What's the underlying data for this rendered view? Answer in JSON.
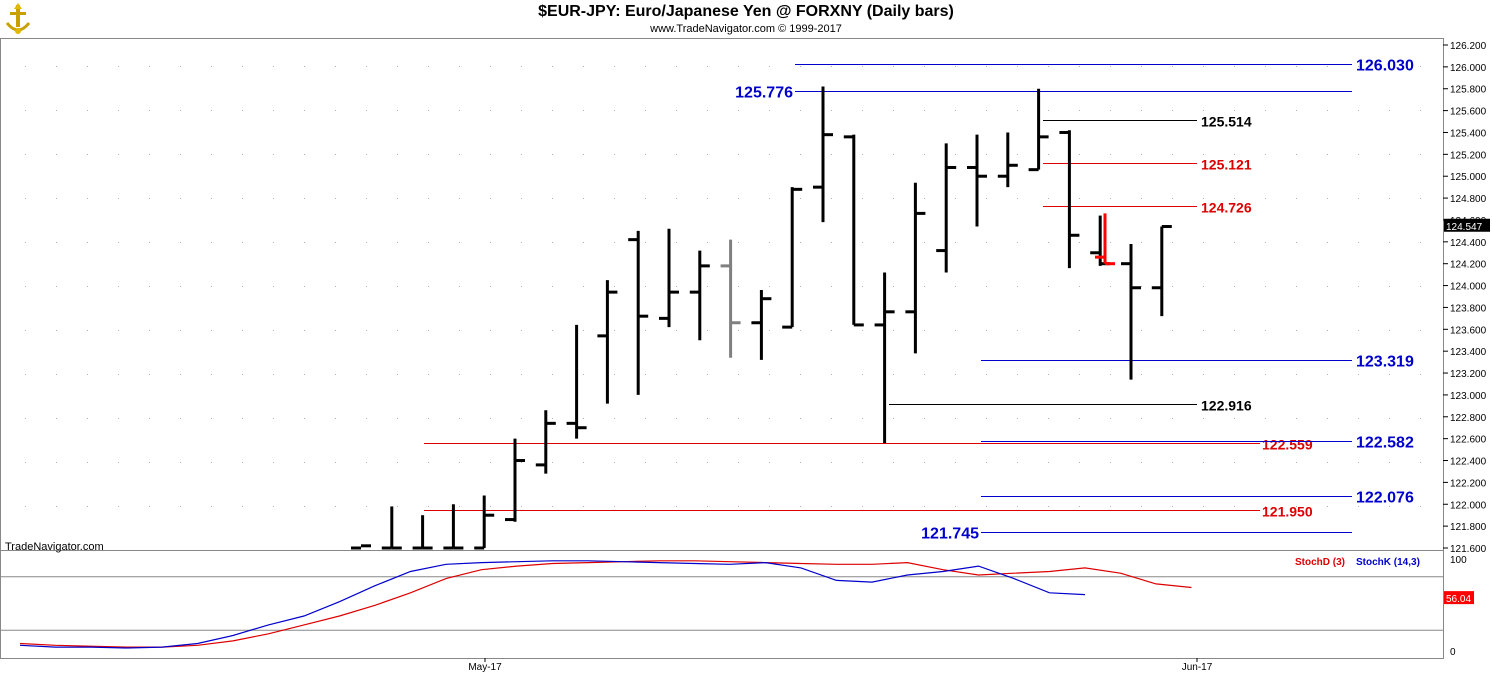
{
  "header": {
    "title": "$EUR-JPY:  Euro/Japanese Yen @ FORXNY  (Daily bars)",
    "subtitle": "www.TradeNavigator.com © 1999-2017",
    "watermark": "TradeNavigator.com"
  },
  "colors": {
    "price_bar": "#000000",
    "price_bar_gray": "#808080",
    "price_bar_red": "#ff0000",
    "blue_level": "#0000cc",
    "red_level": "#dd0000",
    "black_level": "#000000",
    "grid_dot": "#b0b0b0",
    "stoch_d": "#dd0000",
    "stoch_k": "#0000cc"
  },
  "chart_data": [
    {
      "type": "ohlc",
      "title": "$EUR-JPY:  Euro/Japanese Yen @ FORXNY  (Daily bars)",
      "ylim": [
        121.6,
        126.2
      ],
      "y_ticks": [
        "126.200",
        "126.000",
        "125.800",
        "125.600",
        "125.400",
        "125.200",
        "125.000",
        "124.800",
        "124.600",
        "124.400",
        "124.200",
        "124.000",
        "123.800",
        "123.600",
        "123.400",
        "123.200",
        "123.000",
        "122.800",
        "122.600",
        "122.400",
        "122.200",
        "122.000",
        "121.800",
        "121.600"
      ],
      "x_ticks": [
        "May-17",
        "Jun-17"
      ],
      "last_price": "124.547",
      "bars": [
        {
          "o": 121.6,
          "h": 121.6,
          "l": 121.6,
          "c": 121.62
        },
        {
          "o": 121.6,
          "h": 121.98,
          "l": 121.6,
          "c": 121.6
        },
        {
          "o": 121.6,
          "h": 121.9,
          "l": 121.6,
          "c": 121.6
        },
        {
          "o": 121.6,
          "h": 122.0,
          "l": 121.6,
          "c": 121.6
        },
        {
          "o": 121.6,
          "h": 122.08,
          "l": 121.6,
          "c": 121.9
        },
        {
          "o": 121.86,
          "h": 122.6,
          "l": 121.84,
          "c": 122.4
        },
        {
          "o": 122.36,
          "h": 122.86,
          "l": 122.28,
          "c": 122.74
        },
        {
          "o": 122.74,
          "h": 123.64,
          "l": 122.6,
          "c": 122.7
        },
        {
          "o": 123.54,
          "h": 124.05,
          "l": 122.92,
          "c": 123.94
        },
        {
          "o": 124.42,
          "h": 124.5,
          "l": 123.0,
          "c": 123.72
        },
        {
          "o": 123.7,
          "h": 124.52,
          "l": 123.62,
          "c": 123.94
        },
        {
          "o": 123.94,
          "h": 124.32,
          "l": 123.5,
          "c": 124.18
        },
        {
          "o": 124.18,
          "h": 124.42,
          "l": 123.34,
          "c": 123.66
        },
        {
          "o": 123.66,
          "h": 123.96,
          "l": 123.32,
          "c": 123.88
        },
        {
          "o": 123.62,
          "h": 124.9,
          "l": 123.62,
          "c": 124.88
        },
        {
          "o": 124.9,
          "h": 125.82,
          "l": 124.58,
          "c": 125.38
        },
        {
          "o": 125.36,
          "h": 125.38,
          "l": 123.64,
          "c": 123.64
        },
        {
          "o": 123.64,
          "h": 124.12,
          "l": 122.56,
          "c": 123.76
        },
        {
          "o": 123.76,
          "h": 124.94,
          "l": 123.38,
          "c": 124.66
        },
        {
          "o": 124.32,
          "h": 125.3,
          "l": 124.12,
          "c": 125.08
        },
        {
          "o": 125.08,
          "h": 125.38,
          "l": 124.54,
          "c": 125.0
        },
        {
          "o": 125.0,
          "h": 125.4,
          "l": 124.9,
          "c": 125.1
        },
        {
          "o": 125.06,
          "h": 125.8,
          "l": 125.06,
          "c": 125.36
        },
        {
          "o": 125.4,
          "h": 125.42,
          "l": 124.16,
          "c": 124.46
        },
        {
          "o": 124.3,
          "h": 124.64,
          "l": 124.18,
          "c": 124.2
        },
        {
          "o": 124.2,
          "h": 124.38,
          "l": 123.14,
          "c": 123.98
        },
        {
          "o": 123.98,
          "h": 124.54,
          "l": 123.72,
          "c": 124.54
        }
      ],
      "levels": [
        {
          "value": 126.03,
          "label": "126.030",
          "color": "blue",
          "x0": 795,
          "x1": 1352
        },
        {
          "value": 125.776,
          "label": "125.776",
          "color": "blue",
          "x0": 795,
          "x1": 1352
        },
        {
          "value": 125.514,
          "label": "125.514",
          "color": "black",
          "x0": 1043,
          "x1": 1197
        },
        {
          "value": 125.121,
          "label": "125.121",
          "color": "red",
          "x0": 1043,
          "x1": 1197
        },
        {
          "value": 124.726,
          "label": "124.726",
          "color": "red",
          "x0": 1043,
          "x1": 1197
        },
        {
          "value": 123.319,
          "label": "123.319",
          "color": "blue",
          "x0": 981,
          "x1": 1352
        },
        {
          "value": 122.916,
          "label": "122.916",
          "color": "black",
          "x0": 889,
          "x1": 1197
        },
        {
          "value": 122.559,
          "label": "122.559",
          "color": "red",
          "x0": 424,
          "x1": 1260
        },
        {
          "value": 122.582,
          "label": "122.582",
          "color": "blue",
          "x0": 981,
          "x1": 1352
        },
        {
          "value": 122.076,
          "label": "122.076",
          "color": "blue",
          "x0": 981,
          "x1": 1352
        },
        {
          "value": 121.95,
          "label": "121.950",
          "color": "red",
          "x0": 424,
          "x1": 1260
        },
        {
          "value": 121.745,
          "label": "121.745",
          "color": "blue",
          "x0": 981,
          "x1": 1352
        }
      ]
    },
    {
      "type": "line",
      "series": [
        {
          "name": "StochD (3)",
          "color": "red",
          "values": [
            5,
            3,
            2,
            1,
            1,
            3,
            8,
            16,
            26,
            36,
            48,
            62,
            78,
            88,
            92,
            95,
            96,
            97,
            98,
            98,
            97,
            96,
            95,
            94,
            94,
            96,
            88,
            82,
            84,
            86,
            90,
            84,
            72,
            68
          ]
        },
        {
          "name": "StochK (14,3)",
          "color": "blue",
          "values": [
            3,
            1,
            1,
            0,
            1,
            5,
            14,
            26,
            36,
            52,
            70,
            86,
            94,
            96,
            97,
            98,
            98,
            97,
            96,
            95,
            94,
            96,
            90,
            76,
            74,
            82,
            86,
            92,
            78,
            62,
            60
          ]
        }
      ],
      "ylim": [
        0,
        100
      ],
      "y_ticks": [
        "100",
        "0"
      ],
      "last_value": "56.04"
    }
  ]
}
